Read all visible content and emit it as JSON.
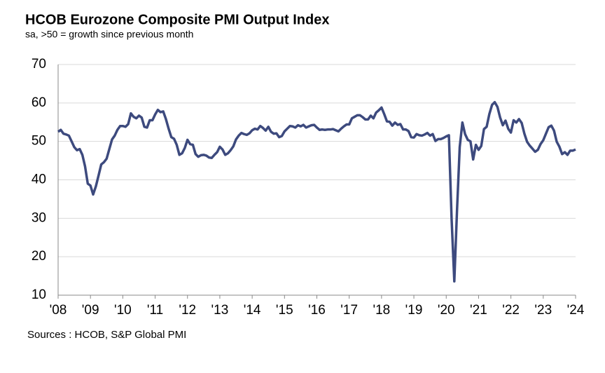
{
  "chart_data": {
    "type": "line",
    "title": "HCOB Eurozone Composite PMI Output Index",
    "subtitle": "sa, >50 = growth  since previous  month",
    "source": "Sources : HCOB, S&P Global  PMI",
    "xlim": [
      2008,
      2024
    ],
    "ylim": [
      10,
      70
    ],
    "xticks": [
      {
        "value": 2008,
        "label": "'08"
      },
      {
        "value": 2009,
        "label": "'09"
      },
      {
        "value": 2010,
        "label": "'10"
      },
      {
        "value": 2011,
        "label": "'11"
      },
      {
        "value": 2012,
        "label": "'12"
      },
      {
        "value": 2013,
        "label": "'13"
      },
      {
        "value": 2014,
        "label": "'14"
      },
      {
        "value": 2015,
        "label": "'15"
      },
      {
        "value": 2016,
        "label": "'16"
      },
      {
        "value": 2017,
        "label": "'17"
      },
      {
        "value": 2018,
        "label": "'18"
      },
      {
        "value": 2019,
        "label": "'19"
      },
      {
        "value": 2020,
        "label": "'20"
      },
      {
        "value": 2021,
        "label": "'21"
      },
      {
        "value": 2022,
        "label": "'22"
      },
      {
        "value": 2023,
        "label": "'23"
      },
      {
        "value": 2024,
        "label": "'24"
      }
    ],
    "yticks": [
      10,
      20,
      30,
      40,
      50,
      60,
      70
    ],
    "grid": true,
    "x": [
      2008,
      2008.083,
      2008.167,
      2008.25,
      2008.333,
      2008.417,
      2008.5,
      2008.583,
      2008.667,
      2008.75,
      2008.833,
      2008.917,
      2009,
      2009.083,
      2009.167,
      2009.25,
      2009.333,
      2009.417,
      2009.5,
      2009.583,
      2009.667,
      2009.75,
      2009.833,
      2009.917,
      2010,
      2010.083,
      2010.167,
      2010.25,
      2010.333,
      2010.417,
      2010.5,
      2010.583,
      2010.667,
      2010.75,
      2010.833,
      2010.917,
      2011,
      2011.083,
      2011.167,
      2011.25,
      2011.333,
      2011.417,
      2011.5,
      2011.583,
      2011.667,
      2011.75,
      2011.833,
      2011.917,
      2012,
      2012.083,
      2012.167,
      2012.25,
      2012.333,
      2012.417,
      2012.5,
      2012.583,
      2012.667,
      2012.75,
      2012.833,
      2012.917,
      2013,
      2013.083,
      2013.167,
      2013.25,
      2013.333,
      2013.417,
      2013.5,
      2013.583,
      2013.667,
      2013.75,
      2013.833,
      2013.917,
      2014,
      2014.083,
      2014.167,
      2014.25,
      2014.333,
      2014.417,
      2014.5,
      2014.583,
      2014.667,
      2014.75,
      2014.833,
      2014.917,
      2015,
      2015.083,
      2015.167,
      2015.25,
      2015.333,
      2015.417,
      2015.5,
      2015.583,
      2015.667,
      2015.75,
      2015.833,
      2015.917,
      2016,
      2016.083,
      2016.167,
      2016.25,
      2016.333,
      2016.417,
      2016.5,
      2016.583,
      2016.667,
      2016.75,
      2016.833,
      2016.917,
      2017,
      2017.083,
      2017.167,
      2017.25,
      2017.333,
      2017.417,
      2017.5,
      2017.583,
      2017.667,
      2017.75,
      2017.833,
      2017.917,
      2018,
      2018.083,
      2018.167,
      2018.25,
      2018.333,
      2018.417,
      2018.5,
      2018.583,
      2018.667,
      2018.75,
      2018.833,
      2018.917,
      2019,
      2019.083,
      2019.167,
      2019.25,
      2019.333,
      2019.417,
      2019.5,
      2019.583,
      2019.667,
      2019.75,
      2019.833,
      2019.917,
      2020,
      2020.083,
      2020.167,
      2020.25,
      2020.333,
      2020.417,
      2020.5,
      2020.583,
      2020.667,
      2020.75,
      2020.833,
      2020.917,
      2021,
      2021.083,
      2021.167,
      2021.25,
      2021.333,
      2021.417,
      2021.5,
      2021.583,
      2021.667,
      2021.75,
      2021.833,
      2021.917,
      2022,
      2022.083,
      2022.167,
      2022.25,
      2022.333,
      2022.417,
      2022.5,
      2022.583,
      2022.667,
      2022.75,
      2022.833,
      2022.917,
      2023,
      2023.083,
      2023.167,
      2023.25,
      2023.333,
      2023.417,
      2023.5,
      2023.583,
      2023.667,
      2023.75,
      2023.833,
      2023.917,
      2024
    ],
    "series": [
      {
        "name": "Composite PMI Output Index",
        "color": "#3d4a7e",
        "values": [
          52.5,
          53.0,
          52.0,
          51.8,
          51.5,
          50.0,
          48.5,
          47.7,
          48.0,
          46.5,
          43.5,
          39.0,
          38.5,
          36.2,
          38.3,
          41.1,
          44.0,
          44.6,
          45.5,
          48.0,
          50.5,
          51.5,
          53.0,
          54.0,
          54.0,
          53.8,
          54.5,
          57.3,
          56.4,
          56.0,
          56.7,
          56.2,
          53.8,
          53.6,
          55.5,
          55.5,
          57.0,
          58.2,
          57.6,
          57.8,
          55.8,
          53.3,
          51.1,
          50.7,
          49.1,
          46.5,
          46.9,
          48.3,
          50.4,
          49.3,
          49.1,
          46.7,
          46.0,
          46.4,
          46.5,
          46.3,
          45.8,
          45.7,
          46.5,
          47.2,
          48.6,
          47.9,
          46.5,
          46.9,
          47.7,
          48.7,
          50.5,
          51.5,
          52.2,
          51.9,
          51.7,
          52.1,
          52.9,
          53.3,
          53.1,
          54.0,
          53.5,
          52.8,
          53.8,
          52.5,
          52.0,
          52.1,
          51.1,
          51.4,
          52.6,
          53.3,
          54.0,
          53.9,
          53.6,
          54.2,
          53.9,
          54.3,
          53.6,
          53.9,
          54.2,
          54.3,
          53.6,
          53.0,
          53.1,
          53.0,
          53.1,
          53.1,
          53.2,
          52.9,
          52.6,
          53.3,
          53.9,
          54.4,
          54.4,
          56.0,
          56.4,
          56.8,
          56.8,
          56.3,
          55.7,
          55.7,
          56.7,
          56.0,
          57.5,
          58.1,
          58.8,
          57.1,
          55.2,
          55.1,
          54.1,
          54.9,
          54.3,
          54.5,
          53.1,
          53.1,
          52.7,
          51.1,
          51.0,
          51.9,
          51.6,
          51.5,
          51.8,
          52.2,
          51.5,
          51.9,
          50.1,
          50.6,
          50.6,
          50.9,
          51.3,
          51.6,
          29.7,
          13.6,
          31.9,
          48.5,
          54.9,
          51.9,
          50.4,
          50.0,
          45.3,
          49.1,
          47.8,
          48.8,
          53.2,
          53.8,
          57.1,
          59.5,
          60.2,
          59.0,
          56.2,
          54.2,
          55.4,
          53.3,
          52.3,
          55.5,
          54.9,
          55.8,
          54.8,
          52.0,
          49.9,
          48.9,
          48.1,
          47.3,
          47.8,
          49.3,
          50.3,
          52.0,
          53.7,
          54.1,
          52.8,
          49.9,
          48.6,
          46.7,
          47.2,
          46.5,
          47.6,
          47.6,
          47.9
        ]
      }
    ]
  }
}
